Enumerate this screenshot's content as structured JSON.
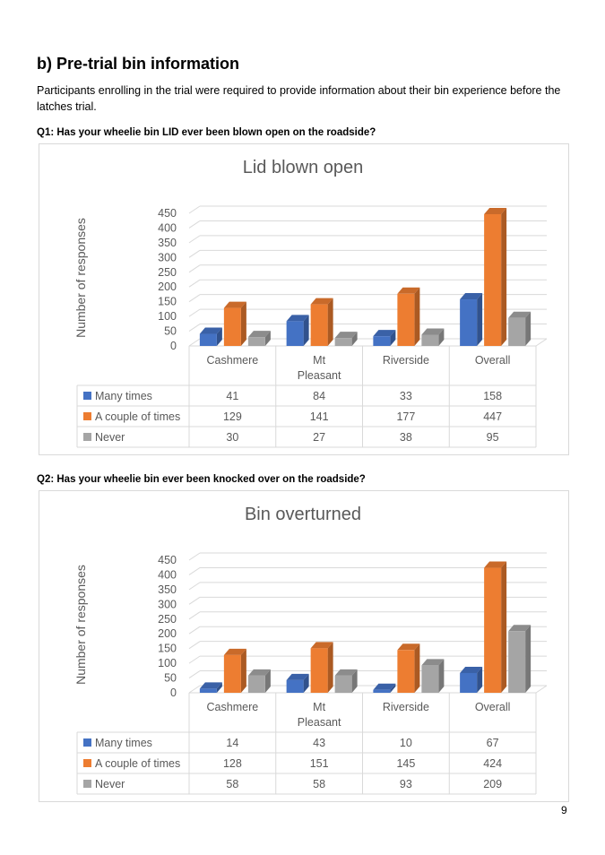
{
  "document": {
    "heading_label": "b)",
    "heading_text": "Pre-trial bin information",
    "intro": "Participants enrolling in the trial were required to provide information about their bin experience before the latches trial.",
    "page_number": "9"
  },
  "questions": [
    "Q1: Has your wheelie bin LID ever been blown open on the roadside?",
    "Q2: Has your wheelie bin ever been knocked over on the roadside?"
  ],
  "colors": {
    "many": "#4472C4",
    "couple": "#ED7D31",
    "never": "#A5A5A5"
  },
  "chart_data": [
    {
      "type": "bar",
      "title": "Lid blown open",
      "ylabel": "Number of responses",
      "categories": [
        "Cashmere",
        "Mt Pleasant",
        "Riverside",
        "Overall"
      ],
      "ylim": [
        0,
        450
      ],
      "yticks": [
        0,
        50,
        100,
        150,
        200,
        250,
        300,
        350,
        400,
        450
      ],
      "grid": true,
      "legend": "data-table",
      "series": [
        {
          "name": "Many times",
          "values": [
            41,
            84,
            33,
            158
          ]
        },
        {
          "name": "A couple of times",
          "values": [
            129,
            141,
            177,
            447
          ]
        },
        {
          "name": "Never",
          "values": [
            30,
            27,
            38,
            95
          ]
        }
      ]
    },
    {
      "type": "bar",
      "title": "Bin overturned",
      "ylabel": "Number of responses",
      "categories": [
        "Cashmere",
        "Mt Pleasant",
        "Riverside",
        "Overall"
      ],
      "ylim": [
        0,
        450
      ],
      "yticks": [
        0,
        50,
        100,
        150,
        200,
        250,
        300,
        350,
        400,
        450
      ],
      "grid": true,
      "legend": "data-table",
      "series": [
        {
          "name": "Many times",
          "values": [
            14,
            43,
            10,
            67
          ]
        },
        {
          "name": "A couple of times",
          "values": [
            128,
            151,
            145,
            424
          ]
        },
        {
          "name": "Never",
          "values": [
            58,
            58,
            93,
            209
          ]
        }
      ]
    }
  ]
}
